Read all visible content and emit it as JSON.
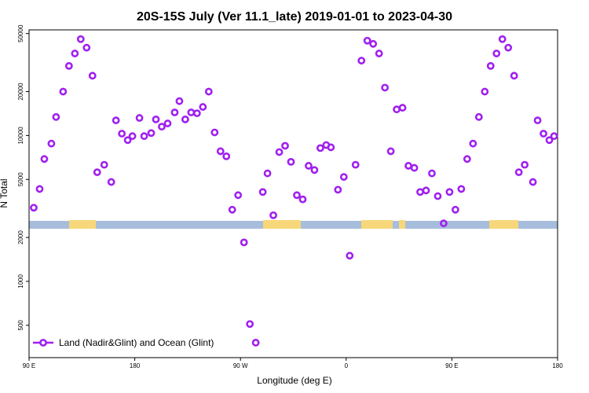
{
  "chart_data": {
    "type": "scatter",
    "title": "20S-15S July (Ver 11.1_late)   2019-01-01 to 2023-04-30",
    "x_label": "Longitude (deg E)",
    "y_label": "N Total",
    "log_y": true,
    "legend": "bottom-left",
    "xlim": [
      90,
      540
    ],
    "ylim": [
      300,
      53000
    ],
    "xticks": [
      {
        "value": 90,
        "label": "90 E"
      },
      180,
      {
        "value": 270,
        "label": "90 W"
      },
      {
        "value": 360,
        "label": "0"
      },
      {
        "value": 450,
        "label": "90 E"
      },
      {
        "value": 540,
        "label": "180"
      }
    ],
    "yticks": [
      500,
      1000,
      2000,
      5000,
      10000,
      20000,
      50000
    ],
    "series": [
      {
        "name": "Land (Nadir&Glint) and Ocean (Glint)",
        "color": "#a020f0",
        "x": [
          94,
          99,
          103,
          109,
          113,
          119,
          124,
          129,
          134,
          139,
          144,
          148,
          154,
          160,
          164,
          169,
          174,
          178,
          184,
          188,
          194,
          198,
          203,
          208,
          214,
          218,
          223,
          228,
          233,
          238,
          243,
          248,
          253,
          258,
          263,
          268,
          273,
          278,
          283,
          289,
          293,
          298,
          303,
          308,
          313,
          318,
          323,
          328,
          333,
          338,
          343,
          347,
          353,
          358,
          363,
          368,
          373,
          378,
          383,
          388,
          393,
          398,
          403,
          408,
          413,
          418,
          423,
          428,
          433,
          438,
          443,
          448,
          453,
          458,
          463,
          468,
          473,
          478,
          483,
          488,
          493,
          498,
          503,
          507,
          512,
          519,
          523,
          528,
          533,
          537
        ],
        "values": [
          3200,
          4300,
          6900,
          8800,
          13400,
          20000,
          30000,
          36500,
          45800,
          40000,
          25700,
          5600,
          6300,
          4800,
          12700,
          10300,
          9300,
          9900,
          13200,
          9900,
          10400,
          12900,
          11500,
          12100,
          14400,
          17200,
          12900,
          14400,
          14200,
          15700,
          20000,
          10500,
          7800,
          7200,
          3100,
          3900,
          1850,
          510,
          380,
          4100,
          5500,
          2840,
          7700,
          8500,
          6600,
          3900,
          3650,
          6200,
          5800,
          8200,
          8600,
          8300,
          4250,
          5200,
          1500,
          6300,
          32600,
          44700,
          42500,
          36500,
          21300,
          7800,
          15100,
          15500,
          6200,
          6000,
          4100,
          4200,
          5500,
          3840,
          2500,
          4100,
          3100,
          4300,
          6900,
          8800,
          13400,
          20000,
          30000,
          36500,
          45800,
          40000,
          25700,
          5600,
          6300,
          4800,
          12700,
          10300,
          9300,
          9900
        ]
      }
    ]
  }
}
